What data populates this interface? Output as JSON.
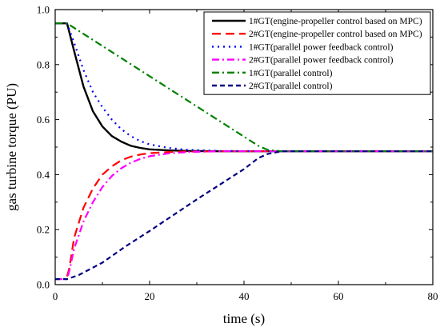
{
  "chart_data": {
    "type": "line",
    "xlabel": "time (s)",
    "ylabel": "gas turbine torque (PU)",
    "xlim": [
      0,
      80
    ],
    "ylim": [
      0.0,
      1.0
    ],
    "xticks": [
      "0",
      "20",
      "40",
      "60",
      "80"
    ],
    "yticks": [
      "0.0",
      "0.2",
      "0.4",
      "0.6",
      "0.8",
      "1.0"
    ],
    "grid": false,
    "legend_position": "top-right",
    "series": [
      {
        "name": "1#GT(engine-propeller control based on MPC)",
        "color": "#000000",
        "dash": "solid",
        "x": [
          0,
          2.5,
          4,
          6,
          8,
          10,
          12,
          14,
          16,
          18,
          20,
          24,
          28,
          35,
          45,
          60,
          80
        ],
        "y": [
          0.95,
          0.95,
          0.85,
          0.72,
          0.63,
          0.575,
          0.54,
          0.52,
          0.505,
          0.497,
          0.492,
          0.488,
          0.486,
          0.485,
          0.485,
          0.485,
          0.485
        ]
      },
      {
        "name": "2#GT(engine-propeller control based on MPC)",
        "color": "#ff0000",
        "dash": "long-dash",
        "x": [
          2.5,
          3,
          4,
          6,
          8,
          10,
          12,
          14,
          16,
          18,
          20,
          24,
          28,
          35,
          45,
          60,
          80
        ],
        "y": [
          0.03,
          0.06,
          0.17,
          0.28,
          0.35,
          0.4,
          0.43,
          0.452,
          0.465,
          0.473,
          0.478,
          0.482,
          0.484,
          0.485,
          0.485,
          0.485,
          0.485
        ]
      },
      {
        "name": "1#GT(parallel power feedback control)",
        "color": "#0000ff",
        "dash": "dot",
        "x": [
          0,
          2.5,
          4,
          6,
          8,
          10,
          12,
          14,
          16,
          18,
          20,
          24,
          28,
          35,
          45,
          60,
          80
        ],
        "y": [
          0.95,
          0.95,
          0.88,
          0.78,
          0.7,
          0.645,
          0.6,
          0.565,
          0.54,
          0.522,
          0.51,
          0.497,
          0.49,
          0.486,
          0.485,
          0.485,
          0.485
        ]
      },
      {
        "name": "2#GT(parallel power feedback control)",
        "color": "#ff00ff",
        "dash": "dash-dot",
        "x": [
          0,
          2.5,
          3,
          4,
          6,
          8,
          10,
          12,
          14,
          16,
          18,
          20,
          24,
          28,
          35,
          45,
          60,
          80
        ],
        "y": [
          0.02,
          0.02,
          0.05,
          0.13,
          0.23,
          0.3,
          0.355,
          0.395,
          0.423,
          0.443,
          0.457,
          0.467,
          0.477,
          0.482,
          0.485,
          0.485,
          0.485,
          0.485
        ]
      },
      {
        "name": "1#GT(parallel control)",
        "color": "#008000",
        "dash": "dash-dot",
        "x": [
          0,
          2.5,
          43,
          45,
          48,
          60,
          80
        ],
        "y": [
          0.95,
          0.95,
          0.505,
          0.49,
          0.485,
          0.485,
          0.485
        ]
      },
      {
        "name": "2#GT(parallel control)",
        "color": "#000080",
        "dash": "dash",
        "x": [
          0,
          2.5,
          5,
          10,
          15,
          20,
          30,
          40,
          43,
          45,
          48,
          60,
          80
        ],
        "y": [
          0.02,
          0.02,
          0.035,
          0.08,
          0.14,
          0.195,
          0.31,
          0.42,
          0.46,
          0.475,
          0.485,
          0.485,
          0.485
        ]
      }
    ]
  }
}
